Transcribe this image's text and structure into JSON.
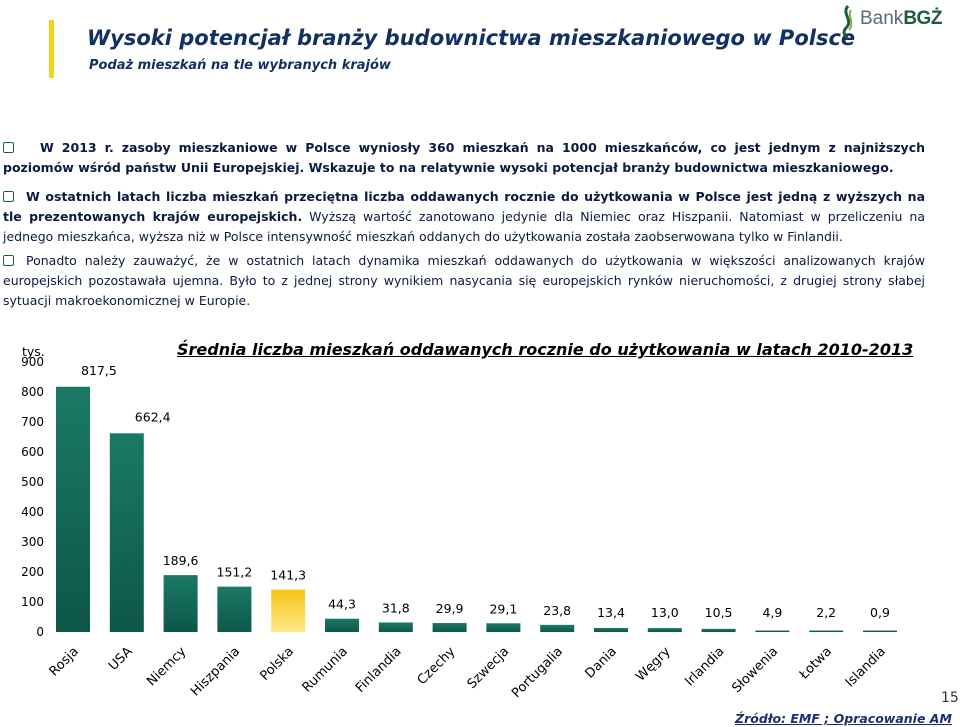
{
  "header": {
    "title": "Wysoki potencjał branży budownictwa mieszkaniowego w Polsce",
    "subtitle": "Podaż mieszkań na tle wybranych krajów",
    "logo_text_light": "Bank",
    "logo_text_bold": "BGŻ"
  },
  "paragraphs": {
    "p1": "W 2013 r. zasoby mieszkaniowe w Polsce wyniosły 360 mieszkań na 1000 mieszkańców, co jest jednym z najniższych poziomów wśród państw Unii Europejskiej. Wskazuje to na relatywnie wysoki potencjał branży budownictwa mieszkaniowego.",
    "p2_bold": "W ostatnich latach liczba mieszkań przeciętna liczba oddawanych rocznie do użytkowania w Polsce jest jedną z wyższych na tle prezentowanych krajów europejskich.",
    "p2_rest": " Wyższą wartość zanotowano jedynie dla Niemiec oraz Hiszpanii. Natomiast w przeliczeniu na jednego mieszkańca, wyższa niż w Polsce intensywność mieszkań oddanych do użytkowania została zaobserwowana tylko w Finlandii.",
    "p3": "Ponadto należy zauważyć, że w ostatnich latach dynamika mieszkań oddawanych do użytkowania w większości analizowanych krajów europejskich pozostawała ujemna. Było to z jednej strony wynikiem nasycania się europejskich rynków nieruchomości, z drugiej strony słabej sytuacji makroekonomicznej w Europie."
  },
  "chart_data": {
    "type": "bar",
    "title": "Średnia liczba mieszkań oddawanych rocznie do użytkowania w latach 2010-2013",
    "unit_label": "tys.",
    "categories": [
      "Rosja",
      "USA",
      "Niemcy",
      "Hiszpania",
      "Polska",
      "Rumunia",
      "Finlandia",
      "Czechy",
      "Szwecja",
      "Portugalia",
      "Dania",
      "Węgry",
      "Irlandia",
      "Słowenia",
      "Łotwa",
      "Islandia"
    ],
    "values": [
      817.5,
      662.4,
      189.6,
      151.2,
      141.3,
      44.3,
      31.8,
      29.9,
      29.1,
      23.8,
      13.4,
      13.0,
      10.5,
      4.9,
      2.2,
      0.9
    ],
    "value_labels": [
      "817,5",
      "662,4",
      "189,6",
      "151,2",
      "141,3",
      "44,3",
      "31,8",
      "29,9",
      "29,1",
      "23,8",
      "13,4",
      "13,0",
      "10,5",
      "4,9",
      "2,2",
      "0,9"
    ],
    "yticks": [
      "0",
      "100",
      "200",
      "300",
      "400",
      "500",
      "600",
      "700",
      "800",
      "900"
    ],
    "ylim": [
      0,
      900
    ],
    "highlight_category": "Polska",
    "colors": {
      "default": "#1a7a66",
      "highlight": "#f5c518"
    },
    "grid": false,
    "legend": "none"
  },
  "footer": {
    "page_number": "15",
    "source": "Źródło: EMF ; Opracowanie AM"
  }
}
